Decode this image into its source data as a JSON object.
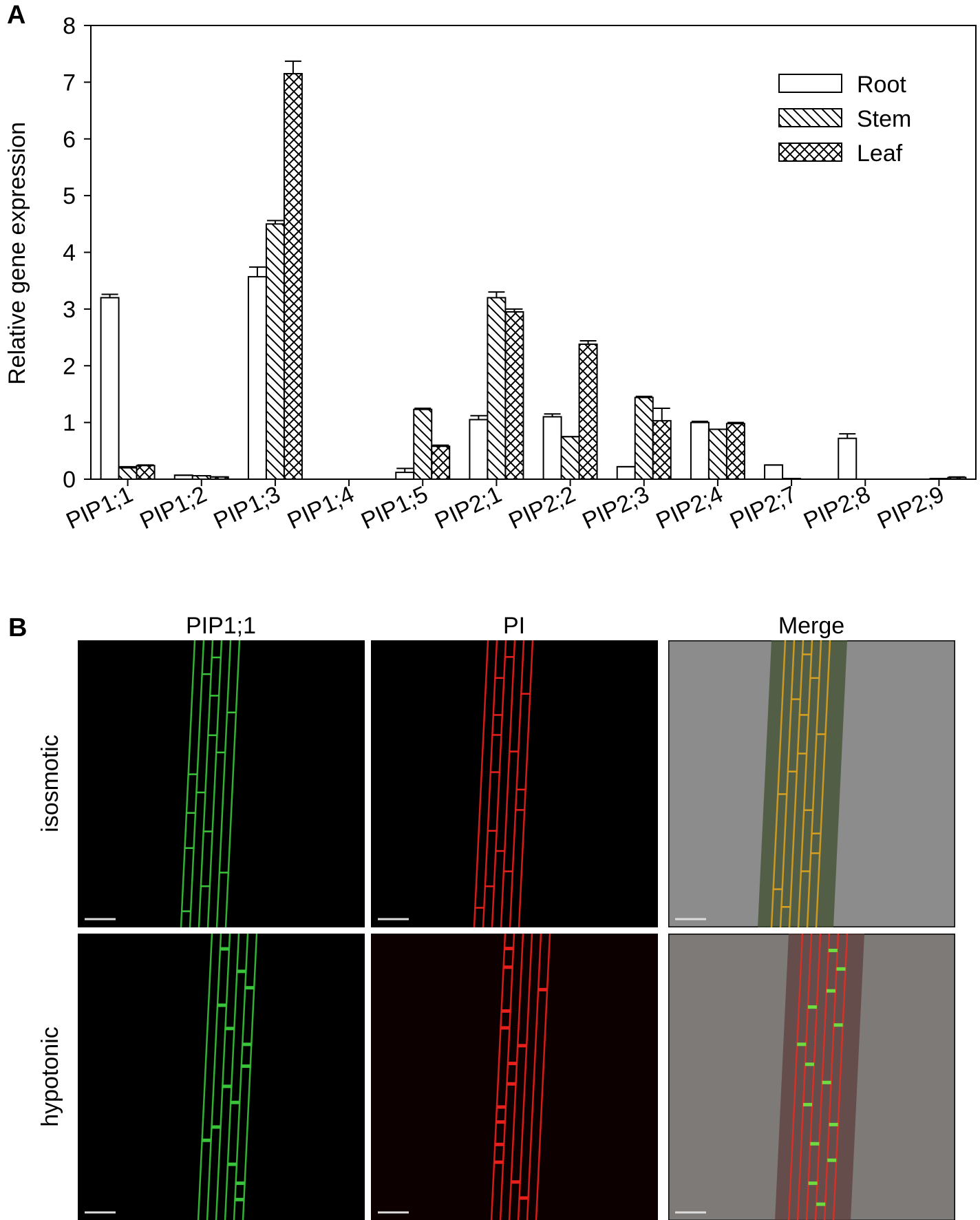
{
  "chart_data": {
    "type": "bar",
    "panel_label": "A",
    "y_label": "Relative gene expression",
    "categories": [
      "PIP1;1",
      "PIP1;2",
      "PIP1;3",
      "PIP1;4",
      "PIP1;5",
      "PIP2;1",
      "PIP2;2",
      "PIP2;3",
      "PIP2;4",
      "PIP2;7",
      "PIP2;8",
      "PIP2;9"
    ],
    "series": [
      {
        "name": "Root",
        "color": "#ffffff",
        "hatch": "none",
        "values": [
          3.2,
          0.07,
          3.57,
          0,
          0.12,
          1.05,
          1.1,
          0.22,
          1.0,
          0.25,
          0.72,
          0
        ],
        "errors": [
          0.06,
          0,
          0.17,
          0,
          0.07,
          0.07,
          0.05,
          0,
          0.02,
          0,
          0.08,
          0
        ]
      },
      {
        "name": "Stem",
        "color": "#ffffff",
        "hatch": "diagonal",
        "values": [
          0.2,
          0.06,
          4.5,
          0,
          1.23,
          3.2,
          0.75,
          1.44,
          0.88,
          0.01,
          0,
          0.01
        ],
        "errors": [
          0.02,
          0,
          0.06,
          0,
          0.02,
          0.1,
          0,
          0.02,
          0,
          0,
          0,
          0
        ]
      },
      {
        "name": "Leaf",
        "color": "#ffffff",
        "hatch": "cross",
        "values": [
          0.24,
          0.04,
          7.15,
          0,
          0.58,
          2.95,
          2.38,
          1.03,
          0.98,
          0,
          0,
          0.03
        ],
        "errors": [
          0.01,
          0,
          0.22,
          0,
          0.02,
          0.05,
          0.06,
          0.22,
          0.02,
          0,
          0,
          0.01
        ]
      }
    ],
    "ylim": [
      0,
      8
    ],
    "yticks": [
      0,
      1,
      2,
      3,
      4,
      5,
      6,
      7,
      8
    ],
    "legend": "top-right"
  },
  "panel_b": {
    "label": "B",
    "columns": [
      "PIP1;1",
      "PI",
      "Merge"
    ],
    "rows": [
      "isosmotic",
      "hypotonic"
    ]
  }
}
